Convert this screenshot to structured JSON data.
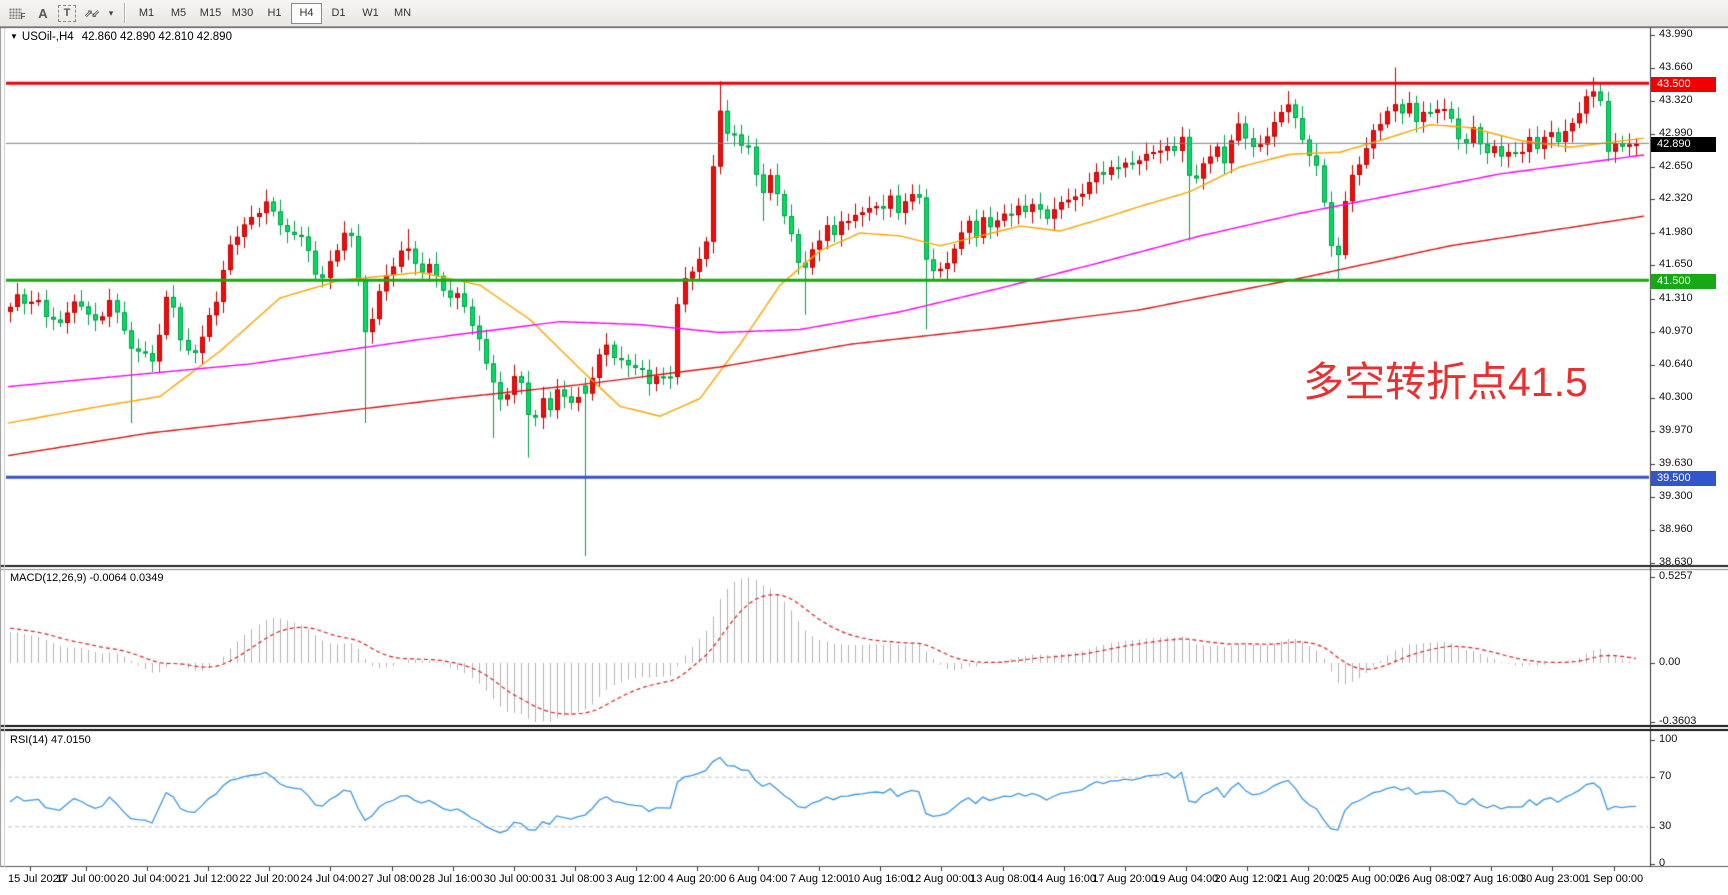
{
  "toolbar": {
    "icon_f": "F",
    "icon_a": "A",
    "icon_t": "T",
    "icon_cursor": "⇗⇙",
    "icon_caret": "▾",
    "timeframes": [
      {
        "label": "M1",
        "active": false
      },
      {
        "label": "M5",
        "active": false
      },
      {
        "label": "M15",
        "active": false
      },
      {
        "label": "M30",
        "active": false
      },
      {
        "label": "H1",
        "active": false
      },
      {
        "label": "H4",
        "active": true
      },
      {
        "label": "D1",
        "active": false
      },
      {
        "label": "W1",
        "active": false
      },
      {
        "label": "MN",
        "active": false
      }
    ]
  },
  "chart": {
    "symbol_line": {
      "caret": "▼",
      "symbol": "USOil-,H4",
      "quote": "42.860 42.890 42.810 42.890"
    },
    "annotation": {
      "text": "多空转折点41.5",
      "color": "#E93030"
    }
  },
  "price_axis": {
    "ticks": [
      "43.990",
      "43.660",
      "43.320",
      "42.990",
      "42.650",
      "42.320",
      "41.980",
      "41.650",
      "41.310",
      "40.970",
      "40.640",
      "40.300",
      "39.970",
      "39.630",
      "39.300",
      "38.960",
      "38.630"
    ],
    "line_labels": [
      {
        "text": "43.500",
        "bg": "#F20000"
      },
      {
        "text": "42.890",
        "bg": "#000000"
      },
      {
        "text": "41.500",
        "bg": "#16A816"
      },
      {
        "text": "39.500",
        "bg": "#3355CC"
      }
    ]
  },
  "indicators": {
    "macd": {
      "name": "MACD(12,26,9)",
      "values": "-0.0064 0.0349",
      "ticks": [
        "0.5257",
        "0.00",
        "-0.3603"
      ]
    },
    "rsi": {
      "name": "RSI(14)",
      "value": "47.0150",
      "ticks": [
        "100",
        "70",
        "30",
        "0"
      ],
      "levels": [
        70,
        30
      ]
    }
  },
  "date_axis": {
    "labels": [
      "15 Jul 2020",
      "17 Jul 00:00",
      "20 Jul 04:00",
      "21 Jul 12:00",
      "22 Jul 20:00",
      "24 Jul 04:00",
      "27 Jul 08:00",
      "28 Jul 16:00",
      "30 Jul 00:00",
      "31 Jul 08:00",
      "3 Aug 12:00",
      "4 Aug 20:00",
      "6 Aug 04:00",
      "7 Aug 12:00",
      "10 Aug 16:00",
      "12 Aug 00:00",
      "13 Aug 08:00",
      "14 Aug 16:00",
      "17 Aug 20:00",
      "19 Aug 04:00",
      "20 Aug 12:00",
      "21 Aug 20:00",
      "25 Aug 00:00",
      "26 Aug 08:00",
      "27 Aug 16:00",
      "30 Aug 23:00",
      "1 Sep 00:00"
    ]
  },
  "chart_data": {
    "type": "candlestick",
    "symbol": "USOil",
    "timeframe": "H4",
    "ohlc": {
      "open": 42.86,
      "high": 42.89,
      "low": 42.81,
      "close": 42.89
    },
    "price_axis_range": [
      38.59,
      44.06
    ],
    "bull_up_color": "#F40C0C",
    "bear_down_color": "#00DE62",
    "hlines": [
      {
        "price": 43.5,
        "color": "#F20000",
        "width": 3,
        "label": "43.500"
      },
      {
        "price": 42.89,
        "color": "#708090",
        "width": 1,
        "label": "42.890"
      },
      {
        "price": 41.5,
        "color": "#16A816",
        "width": 3,
        "label": "41.500"
      },
      {
        "price": 39.5,
        "color": "#3355CC",
        "width": 3,
        "label": "39.500"
      }
    ],
    "close_path": [
      [
        8,
        41.2
      ],
      [
        18,
        41.35
      ],
      [
        28,
        41.25
      ],
      [
        38,
        41.3
      ],
      [
        48,
        41.1
      ],
      [
        58,
        41.05
      ],
      [
        68,
        41.2
      ],
      [
        78,
        41.3
      ],
      [
        88,
        41.15
      ],
      [
        98,
        41.05
      ],
      [
        108,
        41.3
      ],
      [
        118,
        41.15
      ],
      [
        126,
        40.95
      ],
      [
        133,
        40.7,
        null,
        40.05
      ],
      [
        141,
        40.85
      ],
      [
        148,
        40.7
      ],
      [
        155,
        40.62
      ],
      [
        163,
        41.3
      ],
      [
        170,
        41.35
      ],
      [
        182,
        40.85
      ],
      [
        192,
        40.7
      ],
      [
        200,
        40.9
      ],
      [
        208,
        41.1
      ],
      [
        216,
        41.3
      ],
      [
        224,
        41.65
      ],
      [
        232,
        41.9
      ],
      [
        240,
        42.0
      ],
      [
        248,
        42.1
      ],
      [
        258,
        42.2
      ],
      [
        268,
        42.3,
        42.42
      ],
      [
        278,
        42.1
      ],
      [
        288,
        41.95
      ],
      [
        298,
        42.0
      ],
      [
        306,
        41.85
      ],
      [
        314,
        41.6
      ],
      [
        322,
        41.5
      ],
      [
        330,
        41.7
      ],
      [
        338,
        41.85
      ],
      [
        346,
        42.0
      ],
      [
        352,
        41.95
      ],
      [
        358,
        41.5
      ],
      [
        365,
        40.95,
        null,
        40.05
      ],
      [
        373,
        41.15
      ],
      [
        381,
        41.45
      ],
      [
        390,
        41.6
      ],
      [
        398,
        41.75
      ],
      [
        406,
        41.85,
        42.02
      ],
      [
        414,
        41.7
      ],
      [
        422,
        41.55
      ],
      [
        430,
        41.7
      ],
      [
        438,
        41.5
      ],
      [
        446,
        41.3
      ],
      [
        455,
        41.4
      ],
      [
        463,
        41.25
      ],
      [
        470,
        41.1
      ],
      [
        478,
        40.9
      ],
      [
        486,
        40.65
      ],
      [
        494,
        40.45,
        null,
        39.9
      ],
      [
        502,
        40.2
      ],
      [
        510,
        40.45
      ],
      [
        518,
        40.6
      ],
      [
        526,
        40.2,
        null,
        39.7
      ],
      [
        534,
        40.05
      ],
      [
        542,
        40.3
      ],
      [
        550,
        40.2
      ],
      [
        558,
        40.4
      ],
      [
        566,
        40.3
      ],
      [
        574,
        40.25
      ],
      [
        584,
        40.35,
        null,
        38.7
      ],
      [
        592,
        40.5
      ],
      [
        600,
        40.75
      ],
      [
        608,
        40.9
      ],
      [
        616,
        40.6
      ],
      [
        624,
        40.75
      ],
      [
        632,
        40.55
      ],
      [
        640,
        40.65
      ],
      [
        648,
        40.45
      ],
      [
        656,
        40.5
      ],
      [
        664,
        40.55
      ],
      [
        672,
        40.5
      ],
      [
        680,
        41.6
      ],
      [
        688,
        41.5
      ],
      [
        696,
        41.65
      ],
      [
        704,
        41.85
      ],
      [
        710,
        42.05
      ],
      [
        717,
        43.45,
        43.52
      ],
      [
        724,
        42.95
      ],
      [
        731,
        43.05
      ],
      [
        738,
        42.85
      ],
      [
        746,
        42.95
      ],
      [
        754,
        42.6
      ],
      [
        762,
        42.4,
        null,
        42.1
      ],
      [
        770,
        42.55
      ],
      [
        778,
        42.35
      ],
      [
        786,
        42.1
      ],
      [
        794,
        41.85
      ],
      [
        802,
        41.55,
        null,
        41.15
      ],
      [
        810,
        41.75
      ],
      [
        818,
        41.9
      ],
      [
        826,
        42.05
      ],
      [
        834,
        41.95
      ],
      [
        842,
        42.15
      ],
      [
        850,
        42.05
      ],
      [
        858,
        42.25
      ],
      [
        866,
        42.15
      ],
      [
        874,
        42.3
      ],
      [
        882,
        42.2
      ],
      [
        890,
        42.35
      ],
      [
        898,
        42.2
      ],
      [
        906,
        42.3
      ],
      [
        914,
        42.4
      ],
      [
        920,
        42.35
      ],
      [
        928,
        41.45,
        null,
        41.0
      ],
      [
        936,
        41.7
      ],
      [
        944,
        41.55
      ],
      [
        952,
        41.8
      ],
      [
        960,
        41.95
      ],
      [
        968,
        42.1
      ],
      [
        976,
        41.95
      ],
      [
        984,
        42.15
      ],
      [
        992,
        42.0
      ],
      [
        1000,
        42.2
      ],
      [
        1008,
        42.1
      ],
      [
        1016,
        42.3
      ],
      [
        1024,
        42.15
      ],
      [
        1032,
        42.3
      ],
      [
        1040,
        42.2
      ],
      [
        1048,
        42.1
      ],
      [
        1056,
        42.3
      ],
      [
        1064,
        42.25
      ],
      [
        1072,
        42.4
      ],
      [
        1080,
        42.3
      ],
      [
        1088,
        42.5
      ],
      [
        1096,
        42.6
      ],
      [
        1104,
        42.55
      ],
      [
        1112,
        42.7
      ],
      [
        1120,
        42.6
      ],
      [
        1128,
        42.75
      ],
      [
        1136,
        42.65
      ],
      [
        1150,
        42.85
      ],
      [
        1158,
        42.75
      ],
      [
        1166,
        42.9
      ],
      [
        1174,
        42.8
      ],
      [
        1182,
        42.95
      ],
      [
        1192,
        42.4,
        null,
        41.9
      ],
      [
        1200,
        42.65
      ],
      [
        1208,
        42.75
      ],
      [
        1216,
        42.85
      ],
      [
        1224,
        42.7
      ],
      [
        1232,
        42.95
      ],
      [
        1240,
        43.1
      ],
      [
        1248,
        42.9
      ],
      [
        1256,
        42.8
      ],
      [
        1264,
        42.95
      ],
      [
        1272,
        43.05
      ],
      [
        1280,
        43.2
      ],
      [
        1288,
        43.3,
        43.42
      ],
      [
        1296,
        43.1
      ],
      [
        1304,
        42.9
      ],
      [
        1312,
        42.7
      ],
      [
        1320,
        42.6
      ],
      [
        1328,
        41.95
      ],
      [
        1336,
        41.6,
        null,
        41.5
      ],
      [
        1344,
        42.3
      ],
      [
        1352,
        42.55
      ],
      [
        1360,
        42.7
      ],
      [
        1368,
        42.9
      ],
      [
        1376,
        43.05
      ],
      [
        1384,
        43.15
      ],
      [
        1392,
        43.3,
        43.66
      ],
      [
        1400,
        43.2
      ],
      [
        1408,
        43.3
      ],
      [
        1416,
        43.1
      ],
      [
        1424,
        43.25
      ],
      [
        1432,
        43.15
      ],
      [
        1440,
        43.3
      ],
      [
        1448,
        43.2
      ],
      [
        1456,
        43.0
      ],
      [
        1464,
        42.85
      ],
      [
        1472,
        43.05
      ],
      [
        1480,
        42.9
      ],
      [
        1488,
        42.75
      ],
      [
        1496,
        42.9
      ],
      [
        1504,
        42.7
      ],
      [
        1512,
        42.85
      ],
      [
        1520,
        42.75
      ],
      [
        1528,
        42.95
      ],
      [
        1536,
        42.85
      ],
      [
        1544,
        42.95
      ],
      [
        1552,
        43.0
      ],
      [
        1560,
        42.9
      ],
      [
        1568,
        43.05
      ],
      [
        1576,
        43.15
      ],
      [
        1584,
        43.3
      ],
      [
        1592,
        43.45,
        43.56
      ],
      [
        1600,
        43.35
      ],
      [
        1608,
        42.75
      ],
      [
        1616,
        42.95
      ],
      [
        1624,
        42.8
      ],
      [
        1632,
        42.92
      ],
      [
        1640,
        42.89
      ]
    ],
    "ma_lines": {
      "orange": [
        [
          8,
          40.05
        ],
        [
          100,
          40.22
        ],
        [
          160,
          40.32
        ],
        [
          220,
          40.78
        ],
        [
          280,
          41.32
        ],
        [
          340,
          41.5
        ],
        [
          420,
          41.58
        ],
        [
          480,
          41.45
        ],
        [
          530,
          41.1
        ],
        [
          580,
          40.6
        ],
        [
          620,
          40.22
        ],
        [
          660,
          40.12
        ],
        [
          700,
          40.3
        ],
        [
          740,
          40.85
        ],
        [
          780,
          41.45
        ],
        [
          820,
          41.8
        ],
        [
          860,
          41.98
        ],
        [
          900,
          41.95
        ],
        [
          940,
          41.85
        ],
        [
          980,
          41.95
        ],
        [
          1020,
          42.05
        ],
        [
          1060,
          42.0
        ],
        [
          1100,
          42.12
        ],
        [
          1140,
          42.25
        ],
        [
          1190,
          42.4
        ],
        [
          1240,
          42.65
        ],
        [
          1290,
          42.78
        ],
        [
          1340,
          42.8
        ],
        [
          1390,
          42.95
        ],
        [
          1430,
          43.08
        ],
        [
          1470,
          43.05
        ],
        [
          1520,
          42.92
        ],
        [
          1570,
          42.85
        ],
        [
          1650,
          42.95
        ]
      ],
      "magenta": [
        [
          8,
          40.42
        ],
        [
          250,
          40.65
        ],
        [
          420,
          40.9
        ],
        [
          560,
          41.08
        ],
        [
          640,
          41.05
        ],
        [
          720,
          40.97
        ],
        [
          800,
          41.0
        ],
        [
          900,
          41.18
        ],
        [
          1000,
          41.42
        ],
        [
          1100,
          41.68
        ],
        [
          1200,
          41.95
        ],
        [
          1300,
          42.18
        ],
        [
          1400,
          42.38
        ],
        [
          1500,
          42.58
        ],
        [
          1650,
          42.78
        ]
      ],
      "red": [
        [
          8,
          39.72
        ],
        [
          150,
          39.95
        ],
        [
          300,
          40.12
        ],
        [
          450,
          40.3
        ],
        [
          580,
          40.44
        ],
        [
          720,
          40.62
        ],
        [
          850,
          40.85
        ],
        [
          1000,
          41.02
        ],
        [
          1140,
          41.2
        ],
        [
          1300,
          41.52
        ],
        [
          1450,
          41.85
        ],
        [
          1560,
          42.02
        ],
        [
          1650,
          42.16
        ]
      ]
    },
    "ma_colors": {
      "orange": "#FFA500",
      "magenta": "#FF00FF",
      "red": "#DC1414"
    },
    "macd": {
      "last_main": -0.0064,
      "last_signal": 0.0349,
      "range": [
        -0.3603,
        0.5257
      ],
      "histogram_color": "#B4B4B4",
      "signal_color": "#E02020"
    },
    "rsi": {
      "last": 47.015,
      "period": 14,
      "line_color": "#3B97E8",
      "levels": [
        70,
        30
      ]
    }
  }
}
